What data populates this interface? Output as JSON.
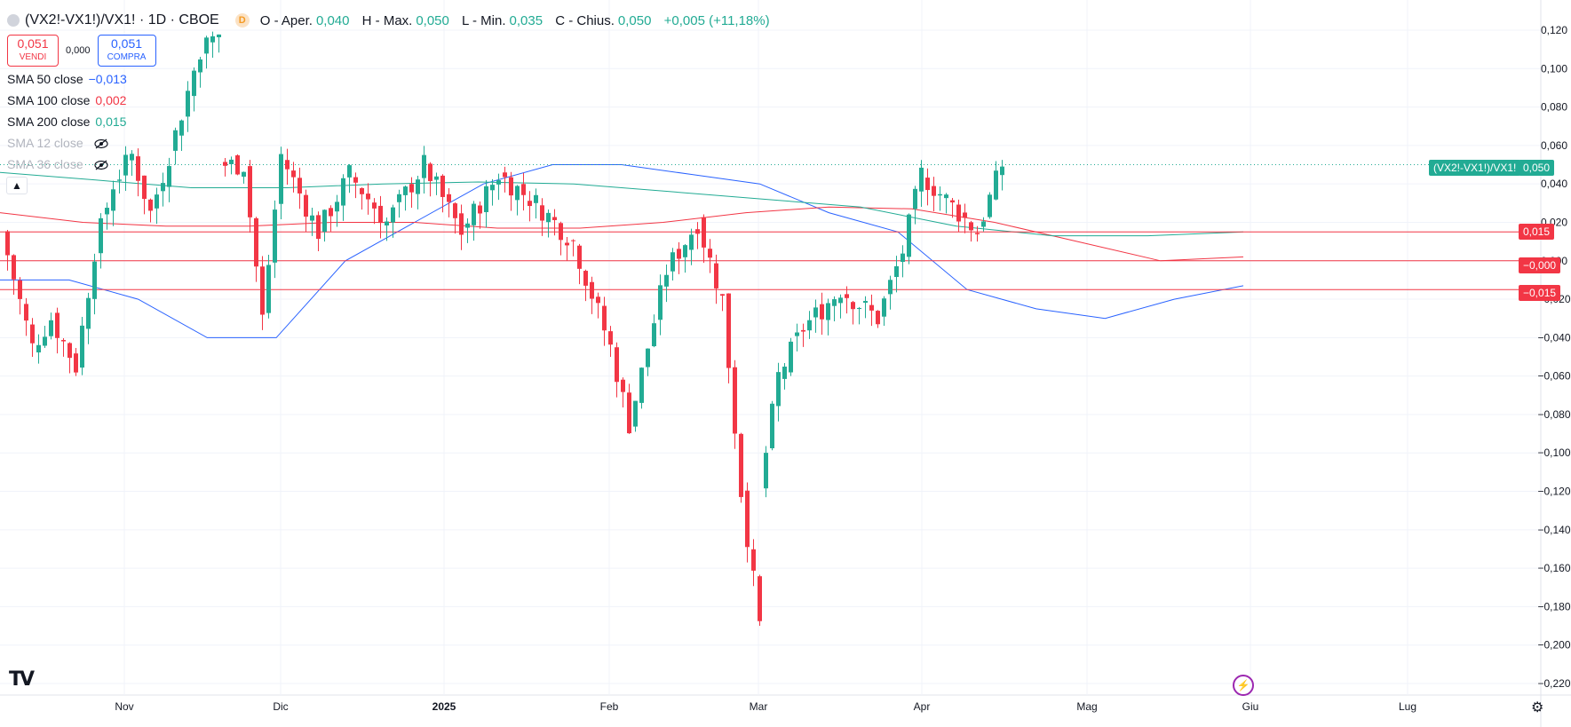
{
  "header": {
    "symbol": "(VX2!-VX1!)/VX1! · 1D · CBOE",
    "session_badge": "D",
    "ohlc": [
      {
        "label": "O - Aper.",
        "value": "0,040"
      },
      {
        "label": "H - Max.",
        "value": "0,050"
      },
      {
        "label": "L - Min.",
        "value": "0,035"
      },
      {
        "label": "C - Chius.",
        "value": "0,050"
      }
    ],
    "change": "+0,005 (+11,18%)"
  },
  "trade": {
    "sell_price": "0,051",
    "sell_label": "VENDI",
    "spread": "0,000",
    "buy_price": "0,051",
    "buy_label": "COMPRA"
  },
  "indicators": [
    {
      "label": "SMA 50 close",
      "value": "−0,013",
      "color": "#2962ff",
      "visible": true
    },
    {
      "label": "SMA 100 close",
      "value": "0,002",
      "color": "#f23645",
      "visible": true
    },
    {
      "label": "SMA 200 close",
      "value": "0,015",
      "color": "#22ab94",
      "visible": true
    },
    {
      "label": "SMA 12 close",
      "value": "",
      "visible": false
    },
    {
      "label": "SMA 36 close",
      "value": "",
      "visible": false
    }
  ],
  "price_axis": {
    "ticks": [
      "0,120",
      "0,100",
      "0,080",
      "0,060",
      "0,040",
      "0,020",
      "0,000",
      "−0,020",
      "−0,040",
      "−0,060",
      "−0,080",
      "−0,100",
      "−0,120",
      "−0,140",
      "−0,160",
      "−0,180",
      "−0,200",
      "−0,220"
    ]
  },
  "time_axis": {
    "ticks": [
      "Nov",
      "Dic",
      "2025",
      "Feb",
      "Mar",
      "Apr",
      "Mag",
      "Giu",
      "Lug"
    ]
  },
  "price_tags": {
    "symbol_tag": "(VX2!-VX1!)/VX1!",
    "last_price": "0,050",
    "line_015": "0,015",
    "line_000": "−0,000",
    "line_m015": "−0,015"
  },
  "colors": {
    "up": "#22ab94",
    "down": "#f23645",
    "sma50": "#2962ff",
    "sma100": "#f23645",
    "sma200": "#22ab94",
    "hline": "#f23645"
  },
  "icons": [
    "eye-off-icon",
    "chevron-up-icon",
    "tradingview-logo-icon",
    "lightning-icon",
    "settings-gear-icon"
  ],
  "chart_data": {
    "type": "candlestick",
    "title": "(VX2!-VX1!)/VX1! · 1D · CBOE",
    "ylim": [
      -0.22,
      0.13
    ],
    "horizontal_lines": [
      0.015,
      0.0,
      -0.015
    ],
    "segments": [
      {
        "start": 0.015,
        "n": 5,
        "end": -0.045,
        "low": -0.05
      },
      {
        "start": -0.045,
        "n": 3,
        "end": -0.03,
        "low": -0.04
      },
      {
        "start": -0.03,
        "n": 4,
        "end": -0.055,
        "low": -0.06
      },
      {
        "start": -0.055,
        "n": 3,
        "end": 0.005,
        "low": -0.045
      },
      {
        "start": 0.005,
        "n": 3,
        "end": 0.04,
        "low": -0.015
      },
      {
        "start": 0.04,
        "n": 3,
        "end": 0.055,
        "low": 0.035
      },
      {
        "start": 0.055,
        "n": 3,
        "end": 0.025,
        "low": 0.02
      },
      {
        "start": 0.025,
        "n": 3,
        "end": 0.055,
        "low": 0.015
      },
      {
        "start": 0.055,
        "n": 5,
        "end": 0.11,
        "low": 0.05
      },
      {
        "start": 0.11,
        "n": 3,
        "end": 0.118,
        "low": 0.1
      },
      {
        "start": 0.05,
        "n": 4,
        "end": 0.05,
        "low": 0.045
      },
      {
        "start": 0.05,
        "n": 3,
        "end": -0.03,
        "low": -0.04
      },
      {
        "start": -0.03,
        "n": 3,
        "end": 0.055,
        "low": -0.03
      },
      {
        "start": 0.055,
        "n": 6,
        "end": 0.015,
        "low": 0.005
      },
      {
        "start": 0.015,
        "n": 5,
        "end": 0.045,
        "low": 0.01
      },
      {
        "start": 0.045,
        "n": 6,
        "end": 0.02,
        "low": 0.01
      },
      {
        "start": 0.02,
        "n": 6,
        "end": 0.05,
        "low": 0.005
      },
      {
        "start": 0.05,
        "n": 6,
        "end": 0.015,
        "low": 0.0
      },
      {
        "start": 0.015,
        "n": 6,
        "end": 0.045,
        "low": 0.005
      },
      {
        "start": 0.045,
        "n": 6,
        "end": 0.03,
        "low": 0.02
      },
      {
        "start": 0.03,
        "n": 6,
        "end": 0.01,
        "low": 0.0
      },
      {
        "start": 0.01,
        "n": 6,
        "end": -0.045,
        "low": -0.05
      },
      {
        "start": -0.045,
        "n": 3,
        "end": -0.085,
        "low": -0.09
      },
      {
        "start": -0.085,
        "n": 6,
        "end": -0.005,
        "low": -0.04
      },
      {
        "start": -0.005,
        "n": 5,
        "end": 0.02,
        "low": -0.01
      },
      {
        "start": 0.02,
        "n": 4,
        "end": -0.02,
        "low": -0.03
      },
      {
        "start": -0.02,
        "n": 3,
        "end": -0.12,
        "low": -0.125
      },
      {
        "start": -0.12,
        "n": 3,
        "end": -0.19,
        "low": -0.19
      },
      {
        "start": -0.12,
        "n": 3,
        "end": -0.06,
        "low": -0.09
      },
      {
        "start": -0.06,
        "n": 4,
        "end": -0.035,
        "low": -0.055
      },
      {
        "start": -0.035,
        "n": 6,
        "end": -0.015,
        "low": -0.04
      },
      {
        "start": -0.015,
        "n": 6,
        "end": -0.03,
        "low": -0.035
      },
      {
        "start": -0.03,
        "n": 4,
        "end": 0.005,
        "low": -0.03
      },
      {
        "start": 0.005,
        "n": 3,
        "end": 0.045,
        "low": 0.01
      },
      {
        "start": 0.045,
        "n": 6,
        "end": 0.025,
        "low": 0.015
      },
      {
        "start": 0.025,
        "n": 3,
        "end": 0.015,
        "low": 0.01
      },
      {
        "start": 0.015,
        "n": 4,
        "end": 0.05,
        "low": 0.035
      }
    ],
    "sma50": [
      -0.01,
      -0.01,
      -0.02,
      -0.04,
      -0.04,
      0.0,
      0.02,
      0.04,
      0.05,
      0.05,
      0.045,
      0.04,
      0.025,
      0.015,
      -0.015,
      -0.025,
      -0.03,
      -0.02,
      -0.013
    ],
    "sma100": [
      0.025,
      0.02,
      0.018,
      0.018,
      0.02,
      0.02,
      0.017,
      0.017,
      0.02,
      0.025,
      0.028,
      0.027,
      0.02,
      0.01,
      0.0,
      0.002
    ],
    "sma200": [
      0.046,
      0.042,
      0.038,
      0.038,
      0.04,
      0.041,
      0.04,
      0.036,
      0.032,
      0.028,
      0.018,
      0.013,
      0.013,
      0.015
    ],
    "x_labels": [
      "Nov",
      "Dic",
      "2025",
      "Feb",
      "Mar",
      "Apr",
      "Mag",
      "Giu",
      "Lug"
    ]
  }
}
